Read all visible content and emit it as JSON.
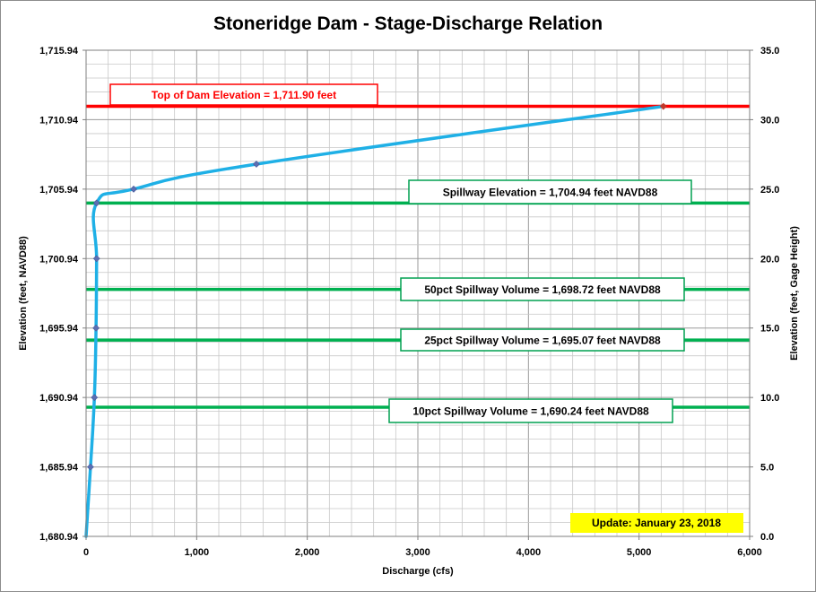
{
  "chart_data": {
    "type": "line",
    "title": "Stoneridge Dam - Stage-Discharge Relation",
    "xlabel": "Discharge  (cfs)",
    "ylabel_left": "Elevation  (feet, NAVD88)",
    "ylabel_right": "Elevation  (feet, Gage Height)",
    "xlim": [
      0,
      6000
    ],
    "ylim_left": [
      1680.94,
      1715.94
    ],
    "ylim_right": [
      0.0,
      35.0
    ],
    "x_ticks": [
      "0",
      "1,000",
      "2,000",
      "3,000",
      "4,000",
      "5,000",
      "6,000"
    ],
    "y_left_ticks": [
      "1,680.94",
      "1,685.94",
      "1,690.94",
      "1,695.94",
      "1,700.94",
      "1,705.94",
      "1,710.94",
      "1,715.94"
    ],
    "y_right_ticks": [
      "0.0",
      "5.0",
      "10.0",
      "15.0",
      "20.0",
      "25.0",
      "30.0",
      "35.0"
    ],
    "grid": true,
    "series": [
      {
        "color": "#1fb0e6",
        "points": [
          {
            "x": 0,
            "y": 1680.94
          },
          {
            "x": 40,
            "y": 1685.94
          },
          {
            "x": 75,
            "y": 1690.94
          },
          {
            "x": 90,
            "y": 1695.94
          },
          {
            "x": 95,
            "y": 1700.94
          },
          {
            "x": 95,
            "y": 1704.94
          },
          {
            "x": 430,
            "y": 1705.94
          },
          {
            "x": 1540,
            "y": 1707.74
          },
          {
            "x": 5220,
            "y": 1711.9
          }
        ]
      }
    ],
    "reference_lines": [
      {
        "label": "Top of Dam Elevation = 1,711.90 feet",
        "y": 1711.9,
        "color": "#ff0000"
      },
      {
        "label": "Spillway Elevation = 1,704.94 feet NAVD88",
        "y": 1704.94,
        "color": "#00b050"
      },
      {
        "label": "50pct Spillway Volume = 1,698.72 feet NAVD88",
        "y": 1698.72,
        "color": "#00b050"
      },
      {
        "label": "25pct Spillway Volume = 1,695.07 feet NAVD88",
        "y": 1695.07,
        "color": "#00b050"
      },
      {
        "label": "10pct Spillway Volume = 1,690.24 feet NAVD88",
        "y": 1690.24,
        "color": "#00b050"
      }
    ],
    "update_note": "Update: January 23, 2018",
    "update_note_color": "#ffff00"
  }
}
